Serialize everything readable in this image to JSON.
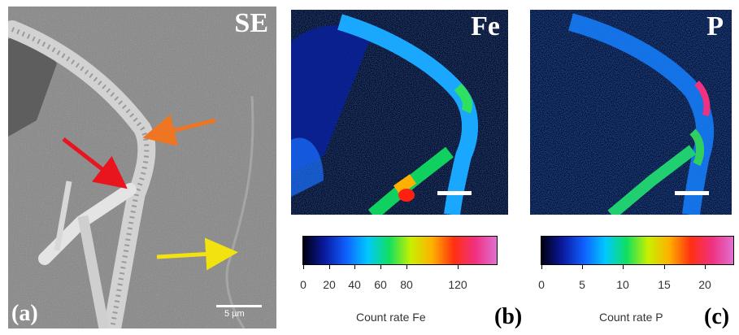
{
  "panel_a": {
    "label": "SE",
    "letter": "(a)",
    "scale_bar": "5 µm",
    "arrow_colors": {
      "red": "#e8141e",
      "orange": "#ee7623",
      "yellow": "#f2e20f"
    }
  },
  "panel_b": {
    "label": "Fe",
    "letter": "(b)",
    "colorbar": {
      "title": "Count rate Fe",
      "ticks": [
        "0",
        "20",
        "40",
        "60",
        "80",
        "120"
      ],
      "tick_values": [
        0,
        20,
        40,
        60,
        80,
        120
      ],
      "max": 150
    }
  },
  "panel_c": {
    "label": "P",
    "letter": "(c)",
    "colorbar": {
      "title": "Count rate P",
      "ticks": [
        "0",
        "5",
        "10",
        "15",
        "20"
      ],
      "tick_values": [
        0,
        5,
        10,
        15,
        20
      ],
      "max": 23.5
    }
  },
  "colormap": [
    "#000010",
    "#0a1aa0",
    "#1060ff",
    "#00c8ff",
    "#10e060",
    "#c8f000",
    "#ffb000",
    "#ff3010",
    "#f03080",
    "#e070d0"
  ]
}
